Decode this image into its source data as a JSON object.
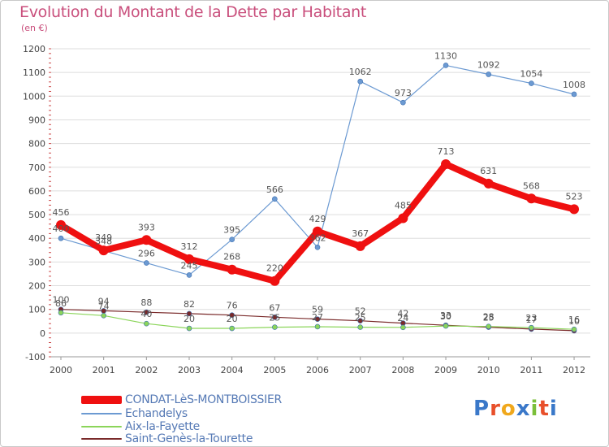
{
  "title": "Evolution du Montant de la Dette par Habitant",
  "unit": "(en €)",
  "colors": {
    "title": "#c94f7c",
    "axis_text": "#444444",
    "grid": "#dddddd",
    "value_label": "#555555",
    "legend_text": "#5579b5"
  },
  "logo": {
    "text": "Proxiti",
    "letter_colors": [
      "#3a78c9",
      "#e8502b",
      "#f0a81c",
      "#3a78c9",
      "#7bbf3a",
      "#e8502b",
      "#3a78c9"
    ]
  },
  "chart_data": {
    "type": "line",
    "title": "Evolution du Montant de la Dette par Habitant",
    "subtitle": "(en €)",
    "xlabel": "",
    "ylabel": "",
    "x": [
      "2000",
      "2001",
      "2002",
      "2003",
      "2004",
      "2005",
      "2006",
      "2007",
      "2008",
      "2009",
      "2010",
      "2011",
      "2012"
    ],
    "ylim": [
      -100,
      1200
    ],
    "yticks": [
      -100,
      0,
      100,
      200,
      300,
      400,
      500,
      600,
      700,
      800,
      900,
      1000,
      1100,
      1200
    ],
    "grid": "horizontal",
    "legend_position": "bottom-left",
    "series": [
      {
        "name": "CONDAT-LèS-MONTBOISSIER",
        "color": "#ef1010",
        "values": [
          456,
          349,
          393,
          312,
          268,
          220,
          429,
          367,
          485,
          713,
          631,
          568,
          523
        ]
      },
      {
        "name": "Echandelys",
        "color": "#6c9ad2",
        "values": [
          400,
          348,
          296,
          245,
          395,
          566,
          362,
          1062,
          973,
          1130,
          1092,
          1054,
          1008
        ]
      },
      {
        "name": "Aix-la-Fayette",
        "color": "#8bd55a",
        "values": [
          86,
          74,
          40,
          20,
          20,
          25,
          27,
          25,
          24,
          30,
          28,
          23,
          16
        ]
      },
      {
        "name": "Saint-Genès-la-Tourette",
        "color": "#7a2a2a",
        "values": [
          100,
          94,
          88,
          82,
          76,
          67,
          59,
          52,
          42,
          33,
          25,
          17,
          10
        ]
      }
    ]
  }
}
